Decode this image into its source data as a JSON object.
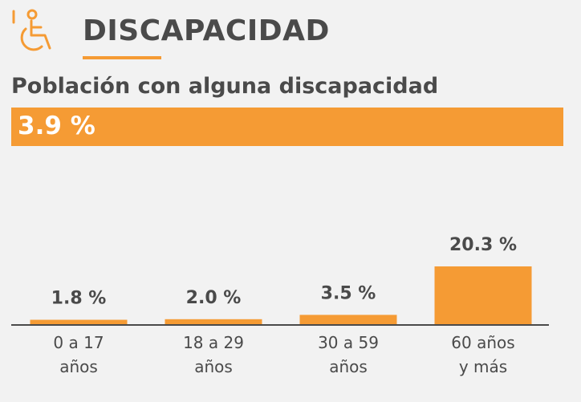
{
  "header": {
    "title": "DISCAPACIDAD",
    "icon": "wheelchair-icon",
    "accent": "#f59b34"
  },
  "summary": {
    "label": "Población con alguna discapacidad",
    "value": "3.9 %"
  },
  "chart_data": {
    "type": "bar",
    "categories": [
      [
        "0 a 17",
        "años"
      ],
      [
        "18 a 29",
        "años"
      ],
      [
        "30 a 59",
        "años"
      ],
      [
        "60 años",
        "y más"
      ]
    ],
    "values": [
      1.8,
      2.0,
      3.5,
      20.3
    ],
    "data_labels": [
      "1.8 %",
      "2.0 %",
      "3.5 %",
      "20.3 %"
    ],
    "ylim": [
      0,
      20.3
    ],
    "grid": false,
    "bar_color": "#f59b34",
    "baseline_color": "#4a4a4a"
  }
}
